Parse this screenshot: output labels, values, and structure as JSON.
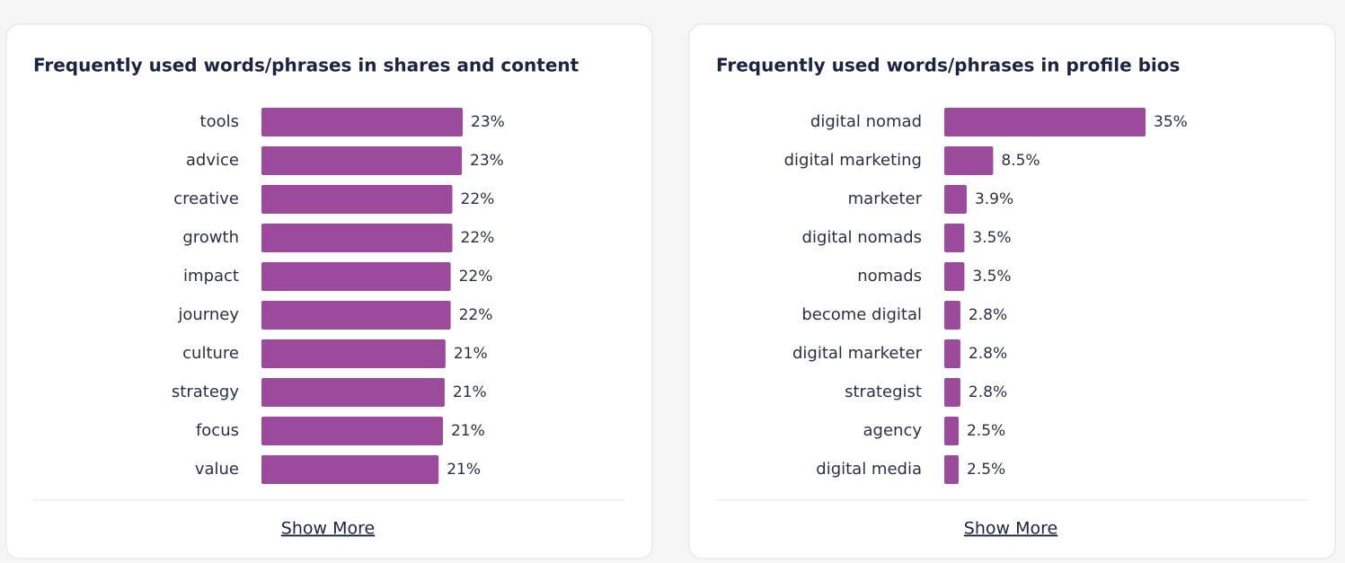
{
  "chart_data": [
    {
      "type": "bar",
      "orientation": "horizontal",
      "title": "Frequently used words/phrases in shares and content",
      "color": "#9c4a9c",
      "categories": [
        "tools",
        "advice",
        "creative",
        "growth",
        "impact",
        "journey",
        "culture",
        "strategy",
        "focus",
        "value"
      ],
      "values": [
        23.4,
        23.3,
        22.2,
        22.2,
        22.0,
        22.0,
        21.4,
        21.3,
        21.1,
        20.6
      ],
      "value_labels": [
        "23%",
        "23%",
        "22%",
        "22%",
        "22%",
        "22%",
        "21%",
        "21%",
        "21%",
        "21%"
      ]
    },
    {
      "type": "bar",
      "orientation": "horizontal",
      "title": "Frequently used words/phrases in profile bios",
      "color": "#9c4a9c",
      "categories": [
        "digital nomad",
        "digital marketing",
        "marketer",
        "digital nomads",
        "nomads",
        "become digital",
        "digital marketer",
        "strategist",
        "agency",
        "digital media"
      ],
      "values": [
        35,
        8.5,
        3.9,
        3.5,
        3.5,
        2.8,
        2.8,
        2.8,
        2.5,
        2.5
      ],
      "value_labels": [
        "35%",
        "8.5%",
        "3.9%",
        "3.5%",
        "3.5%",
        "2.8%",
        "2.8%",
        "2.8%",
        "2.5%",
        "2.5%"
      ]
    }
  ],
  "buttons": [
    "Show More",
    "Show More"
  ]
}
